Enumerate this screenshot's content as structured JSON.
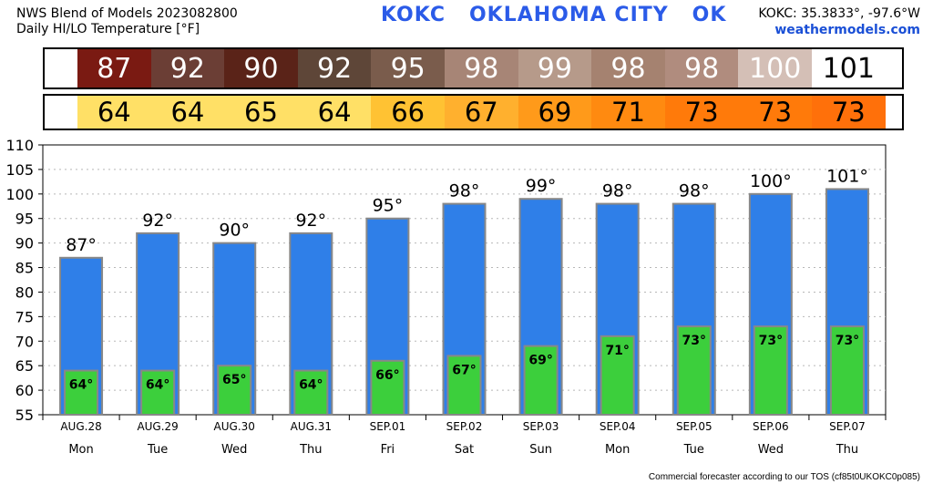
{
  "header": {
    "title_line1": "NWS Blend of Models 2023082800",
    "title_line2": "Daily HI/LO Temperature [°F]",
    "station": "KOKC   OKLAHOMA CITY   OK",
    "coords": "KOKC: 35.3833°, -97.6°W",
    "site": "weathermodels.com"
  },
  "footer": "Commercial forecaster according to our TOS (cf85t0UKOKC0p085)",
  "hi_strip_colors": [
    "#7a1a12",
    "#6b3e35",
    "#5a2318",
    "#5e4638",
    "#7a5c4c",
    "#a78576",
    "#b69a8a",
    "#a58270",
    "#b08c7e",
    "#d4bfb6",
    "#ffffff"
  ],
  "lo_strip_colors": [
    "#ffe066",
    "#ffe066",
    "#ffe066",
    "#ffe066",
    "#ffc233",
    "#ffb02e",
    "#ff9a1a",
    "#ff8a10",
    "#ff7a0a",
    "#ff7a0a",
    "#ff700a"
  ],
  "hi_text_colors": [
    "#ffffff",
    "#ffffff",
    "#ffffff",
    "#ffffff",
    "#ffffff",
    "#ffffff",
    "#ffffff",
    "#ffffff",
    "#ffffff",
    "#ffffff",
    "#000000"
  ],
  "colors": {
    "hi_bar": "#2f7fe8",
    "lo_bar": "#3ccf3c",
    "bar_edge": "#888888"
  },
  "chart_data": {
    "type": "bar",
    "categories": [
      "AUG.28",
      "AUG.29",
      "AUG.30",
      "AUG.31",
      "SEP.01",
      "SEP.02",
      "SEP.03",
      "SEP.04",
      "SEP.05",
      "SEP.06",
      "SEP.07"
    ],
    "days": [
      "Mon",
      "Tue",
      "Wed",
      "Thu",
      "Fri",
      "Sat",
      "Sun",
      "Mon",
      "Tue",
      "Wed",
      "Thu"
    ],
    "series": [
      {
        "values": [
          87,
          92,
          90,
          92,
          95,
          98,
          99,
          98,
          98,
          100,
          101
        ],
        "labels": [
          "87°",
          "92°",
          "90°",
          "92°",
          "95°",
          "98°",
          "99°",
          "98°",
          "98°",
          "100°",
          "101°"
        ]
      },
      {
        "values": [
          64,
          64,
          65,
          64,
          66,
          67,
          69,
          71,
          73,
          73,
          73
        ],
        "labels": [
          "64°",
          "64°",
          "65°",
          "64°",
          "66°",
          "67°",
          "69°",
          "71°",
          "73°",
          "73°",
          "73°"
        ]
      }
    ],
    "hi_strip": [
      "87",
      "92",
      "90",
      "92",
      "95",
      "98",
      "99",
      "98",
      "98",
      "100",
      "101"
    ],
    "lo_strip": [
      "64",
      "64",
      "65",
      "64",
      "66",
      "67",
      "69",
      "71",
      "73",
      "73",
      "73"
    ],
    "ylim": [
      55,
      110
    ],
    "yticks": [
      "110",
      "105",
      "100",
      "95",
      "90",
      "85",
      "80",
      "75",
      "70",
      "65",
      "60",
      "55"
    ],
    "grid": true
  }
}
